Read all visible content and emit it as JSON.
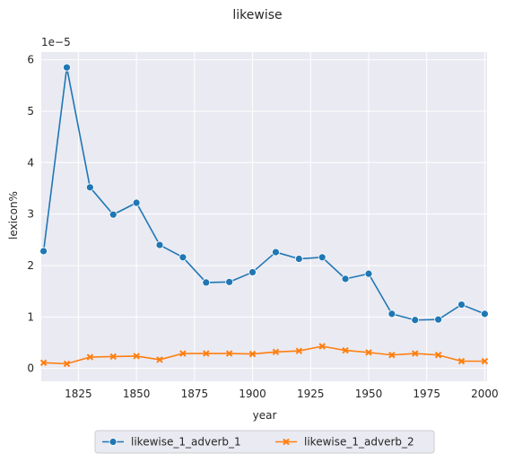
{
  "chart_data": {
    "type": "line",
    "title": "likewise",
    "xlabel": "year",
    "ylabel": "lexicon%",
    "y_offset_label": "1e−5",
    "xlim": [
      1809,
      2001
    ],
    "ylim": [
      -0.25,
      6.15
    ],
    "x_ticks": [
      1825,
      1850,
      1875,
      1900,
      1925,
      1950,
      1975,
      2000
    ],
    "y_ticks": [
      0,
      1,
      2,
      3,
      4,
      5,
      6
    ],
    "grid": true,
    "legend_placement": "bottom-center-outside",
    "x": [
      1810,
      1820,
      1830,
      1840,
      1850,
      1860,
      1870,
      1880,
      1890,
      1900,
      1910,
      1920,
      1930,
      1940,
      1950,
      1960,
      1970,
      1980,
      1990,
      2000
    ],
    "series": [
      {
        "name": "likewise_1_adverb_1",
        "color": "#1f77b4",
        "marker": "circle",
        "values": [
          2.28,
          5.85,
          3.52,
          2.99,
          3.22,
          2.4,
          2.16,
          1.67,
          1.68,
          1.87,
          2.26,
          2.13,
          2.16,
          1.74,
          1.84,
          1.06,
          0.94,
          0.95,
          1.24,
          1.06
        ]
      },
      {
        "name": "likewise_1_adverb_2",
        "color": "#ff7f0e",
        "marker": "x",
        "values": [
          0.11,
          0.09,
          0.22,
          0.23,
          0.24,
          0.17,
          0.29,
          0.29,
          0.29,
          0.28,
          0.32,
          0.34,
          0.43,
          0.35,
          0.31,
          0.26,
          0.29,
          0.26,
          0.14,
          0.14
        ]
      }
    ]
  }
}
